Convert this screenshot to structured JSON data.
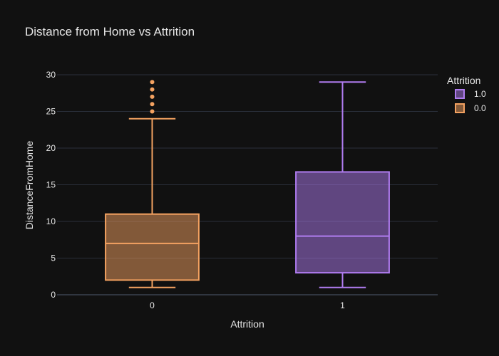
{
  "chart_data": {
    "type": "box",
    "title": "Distance from Home vs Attrition",
    "xlabel": "Attrition",
    "ylabel": "DistanceFromHome",
    "ylim": [
      0,
      30
    ],
    "yticks": [
      "0",
      "5",
      "10",
      "15",
      "20",
      "25",
      "30"
    ],
    "ytick_values": [
      0,
      5,
      10,
      15,
      20,
      25,
      30
    ],
    "categories": [
      "0",
      "1"
    ],
    "grid": true,
    "legend_position": "top-right",
    "legend": {
      "title": "Attrition",
      "entries": [
        "1.0",
        "0.0"
      ]
    },
    "series": [
      {
        "name": "0.0",
        "category": "0",
        "color": "#f4a261",
        "min": 1,
        "q1": 2,
        "median": 7,
        "q3": 11,
        "max": 24,
        "outliers": [
          25,
          26,
          27,
          28,
          29
        ]
      },
      {
        "name": "1.0",
        "category": "1",
        "color": "#b07cf0",
        "min": 1,
        "q1": 3,
        "median": 8,
        "q3": 16.75,
        "max": 29,
        "outliers": []
      }
    ]
  },
  "colors": {
    "background": "#111111",
    "grid": "#2a2f3a",
    "axis_text": "#e6e6e6",
    "series_0": "#f4a261",
    "series_1": "#b07cf0"
  }
}
